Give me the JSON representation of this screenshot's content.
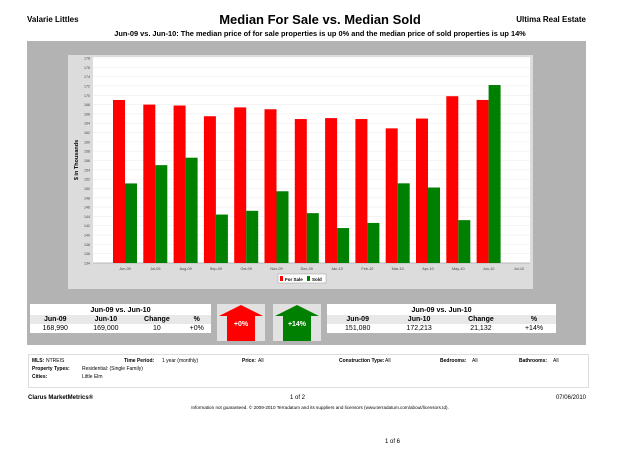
{
  "header": {
    "agent": "Valarie Littles",
    "title": "Median For Sale vs. Median Sold",
    "company": "Ultima Real Estate",
    "subtitle": "Jun-09 vs. Jun-10:  The median price of for sale properties is up 0% and the median price of sold properties is up 14%"
  },
  "chart_data": {
    "type": "bar",
    "ylabel": "$ in Thousands",
    "ylim": [
      134,
      178
    ],
    "yticks": [
      134,
      136,
      138,
      140,
      142,
      144,
      146,
      148,
      150,
      152,
      154,
      156,
      158,
      160,
      162,
      164,
      166,
      168,
      170,
      172,
      174,
      176,
      178
    ],
    "categories": [
      "Jun-09",
      "Jul-09",
      "Aug-09",
      "Sep-09",
      "Oct-09",
      "Nov-09",
      "Dec-09",
      "Jan-10",
      "Feb-10",
      "Mar-10",
      "Apr-10",
      "May-10",
      "Jun-10",
      "Jul-10"
    ],
    "series": [
      {
        "name": "For Sale",
        "color": "#ff0000",
        "values": [
          168.99,
          168.0,
          167.8,
          165.5,
          167.4,
          167.0,
          164.9,
          165.1,
          164.9,
          162.9,
          165.0,
          169.8,
          169.0,
          null
        ]
      },
      {
        "name": "Sold",
        "color": "#008000",
        "values": [
          151.08,
          155.0,
          156.6,
          144.4,
          145.2,
          149.4,
          144.7,
          141.5,
          142.6,
          151.1,
          150.2,
          143.2,
          172.2,
          null
        ]
      }
    ],
    "grid": true,
    "legend": "bottom"
  },
  "forsale": {
    "heading": "Jun-09 vs. Jun-10",
    "cols": [
      "Jun-09",
      "Jun-10",
      "Change",
      "%"
    ],
    "vals": [
      "168,990",
      "169,000",
      "10",
      "+0%"
    ],
    "arrow": "+0%",
    "color": "#ff0000"
  },
  "sold": {
    "heading": "Jun-09 vs. Jun-10",
    "cols": [
      "Jun-09",
      "Jun-10",
      "Change",
      "%"
    ],
    "vals": [
      "151,080",
      "172,213",
      "21,132",
      "+14%"
    ],
    "arrow": "+14%",
    "color": "#008000"
  },
  "filters": {
    "mls_l": "MLS:",
    "mls": "NTREIS",
    "tp_l": "Time Period:",
    "tp": "1 year (monthly)",
    "price_l": "Price:",
    "price": "All",
    "ct_l": "Construction Type:",
    "ct": "All",
    "bed_l": "Bedrooms:",
    "bed": "All",
    "bath_l": "Bathrooms:",
    "bath": "All",
    "pt_l": "Property Types:",
    "pt": "Residential: (Single Family)",
    "cities_l": "Cities:",
    "cities": "Little Elm"
  },
  "footer": {
    "brand": "Clarus MarketMetrics®",
    "page": "1 of 2",
    "date": "07/06/2010",
    "disclaimer": "Information not guaranteed.  © 2009-2010 Terradatum and its suppliers and licensors (www.terradatum.com/about/licensors.td).",
    "doc_page": "1 of 6"
  }
}
